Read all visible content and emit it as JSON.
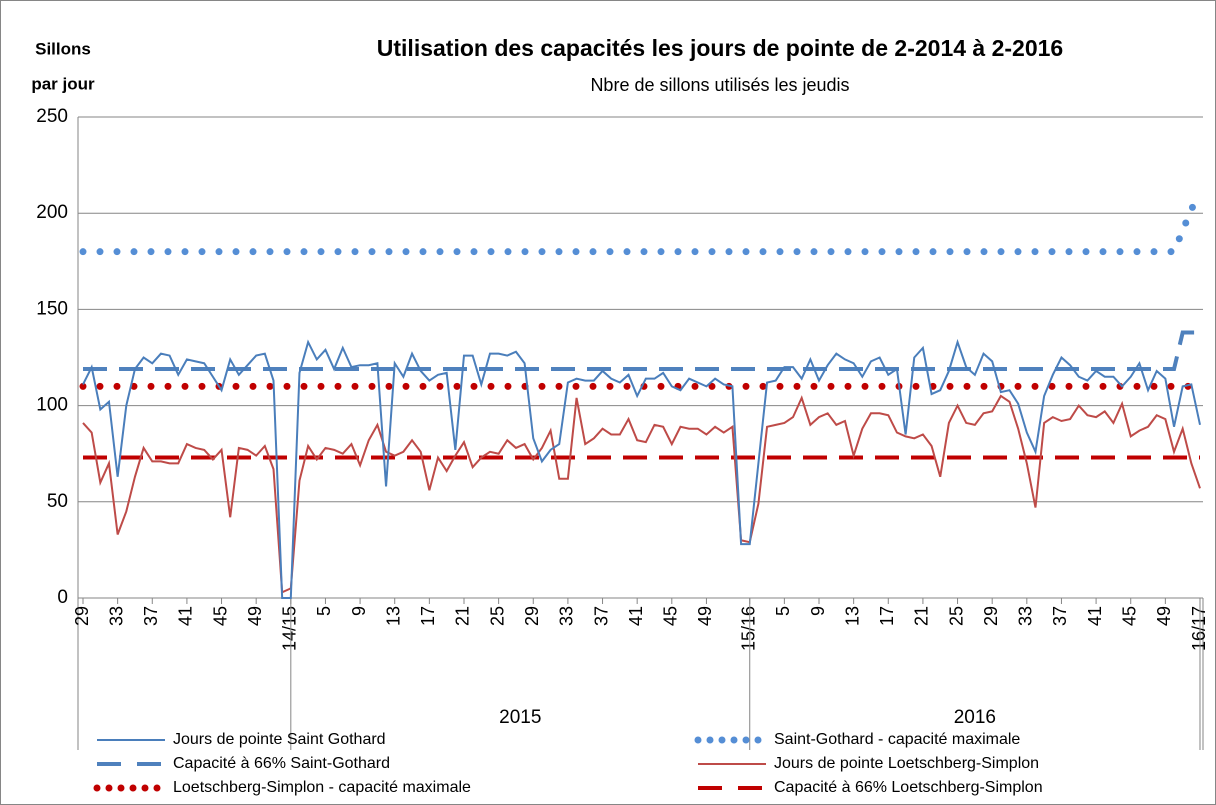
{
  "chart_data": {
    "type": "line",
    "title": "Utilisation des capacités les jours de pointe de 2-2014 à 2-2016",
    "subtitle": "Nbre de sillons utilisés les jeudis",
    "y_label": [
      "Sillons",
      "par jour"
    ],
    "ylim": [
      0,
      250
    ],
    "yticks": [
      0,
      50,
      100,
      150,
      200,
      250
    ],
    "grid": true,
    "legend": "bottom",
    "groups": [
      "2015",
      "2016"
    ],
    "categories": [
      "29",
      null,
      null,
      null,
      "33",
      null,
      null,
      null,
      "37",
      null,
      null,
      null,
      "41",
      null,
      null,
      null,
      "45",
      null,
      null,
      null,
      "49",
      null,
      null,
      null,
      "14/15",
      null,
      null,
      null,
      "5",
      null,
      null,
      null,
      "9",
      null,
      null,
      null,
      "13",
      null,
      null,
      null,
      "17",
      null,
      null,
      null,
      "21",
      null,
      null,
      null,
      "25",
      null,
      null,
      null,
      "29",
      null,
      null,
      null,
      "33",
      null,
      null,
      null,
      "37",
      null,
      null,
      null,
      "41",
      null,
      null,
      null,
      "45",
      null,
      null,
      null,
      "49",
      null,
      null,
      null,
      null,
      "15/16",
      null,
      null,
      null,
      "5",
      null,
      null,
      null,
      "9",
      null,
      null,
      null,
      "13",
      null,
      null,
      null,
      "17",
      null,
      null,
      null,
      "21",
      null,
      null,
      null,
      "25",
      null,
      null,
      null,
      "29",
      null,
      null,
      null,
      "33",
      null,
      null,
      null,
      "37",
      null,
      null,
      null,
      "41",
      null,
      null,
      null,
      "45",
      null,
      null,
      null,
      "49",
      null,
      null,
      null,
      "16/17"
    ],
    "series": [
      {
        "name": "Jours de pointe Saint Gothard",
        "color": "#4a7ebb",
        "style": "solid",
        "values": [
          111,
          120,
          98,
          102,
          63,
          100,
          119,
          125,
          122,
          127,
          126,
          116,
          124,
          123,
          122,
          115,
          108,
          124,
          116,
          121,
          126,
          127,
          113,
          0,
          0,
          117,
          133,
          124,
          129,
          119,
          130,
          120,
          121,
          121,
          122,
          58,
          122,
          115,
          127,
          118,
          113,
          116,
          117,
          77,
          126,
          126,
          111,
          127,
          127,
          126,
          128,
          122,
          83,
          71,
          77,
          80,
          112,
          114,
          113,
          113,
          118,
          114,
          112,
          116,
          105,
          114,
          114,
          117,
          110,
          108,
          114,
          112,
          110,
          114,
          111,
          110,
          28,
          28,
          70,
          112,
          113,
          120,
          120,
          114,
          124,
          113,
          121,
          127,
          124,
          122,
          115,
          123,
          125,
          116,
          119,
          85,
          125,
          130,
          106,
          108,
          118,
          133,
          120,
          116,
          127,
          123,
          107,
          108,
          101,
          86,
          76,
          105,
          116,
          125,
          121,
          115,
          113,
          118,
          115,
          115,
          110,
          115,
          122,
          108,
          118,
          114,
          89,
          110,
          111,
          90
        ]
      },
      {
        "name": "Saint-Gothard - capacité maximale",
        "color": "#558ed5",
        "style": "dot",
        "values": [
          180,
          180,
          180,
          180,
          180,
          180,
          180,
          180,
          180,
          180,
          180,
          180,
          180,
          180,
          180,
          180,
          180,
          180,
          180,
          180,
          180,
          180,
          180,
          180,
          180,
          180,
          180,
          180,
          180,
          180,
          180,
          180,
          180,
          180,
          180,
          180,
          180,
          180,
          180,
          180,
          180,
          180,
          180,
          180,
          180,
          180,
          180,
          180,
          180,
          180,
          180,
          180,
          180,
          180,
          180,
          180,
          180,
          180,
          180,
          180,
          180,
          180,
          180,
          180,
          180,
          180,
          180,
          180,
          180,
          180,
          180,
          180,
          180,
          180,
          180,
          180,
          180,
          180,
          180,
          180,
          180,
          180,
          180,
          180,
          180,
          180,
          180,
          180,
          180,
          180,
          180,
          180,
          180,
          180,
          180,
          180,
          180,
          180,
          180,
          180,
          180,
          180,
          180,
          180,
          180,
          180,
          180,
          180,
          180,
          180,
          180,
          180,
          180,
          180,
          180,
          180,
          180,
          180,
          180,
          180,
          180,
          180,
          180,
          180,
          180,
          180,
          180,
          191,
          202,
          210
        ]
      },
      {
        "name": "Capacité à 66% Saint-Gothard",
        "color": "#4f81bd",
        "style": "dash",
        "values": [
          119,
          119,
          119,
          119,
          119,
          119,
          119,
          119,
          119,
          119,
          119,
          119,
          119,
          119,
          119,
          119,
          119,
          119,
          119,
          119,
          119,
          119,
          119,
          119,
          119,
          119,
          119,
          119,
          119,
          119,
          119,
          119,
          119,
          119,
          119,
          119,
          119,
          119,
          119,
          119,
          119,
          119,
          119,
          119,
          119,
          119,
          119,
          119,
          119,
          119,
          119,
          119,
          119,
          119,
          119,
          119,
          119,
          119,
          119,
          119,
          119,
          119,
          119,
          119,
          119,
          119,
          119,
          119,
          119,
          119,
          119,
          119,
          119,
          119,
          119,
          119,
          119,
          119,
          119,
          119,
          119,
          119,
          119,
          119,
          119,
          119,
          119,
          119,
          119,
          119,
          119,
          119,
          119,
          119,
          119,
          119,
          119,
          119,
          119,
          119,
          119,
          119,
          119,
          119,
          119,
          119,
          119,
          119,
          119,
          119,
          119,
          119,
          119,
          119,
          119,
          119,
          119,
          119,
          119,
          119,
          119,
          119,
          119,
          119,
          119,
          119,
          119,
          138,
          138,
          138
        ]
      },
      {
        "name": "Jours de pointe Loetschberg-Simplon",
        "color": "#be4b48",
        "style": "solid",
        "values": [
          91,
          86,
          60,
          70,
          33,
          45,
          63,
          78,
          71,
          71,
          70,
          70,
          80,
          78,
          77,
          72,
          77,
          42,
          78,
          77,
          74,
          79,
          67,
          3,
          5,
          61,
          79,
          72,
          78,
          77,
          75,
          80,
          69,
          82,
          90,
          76,
          74,
          76,
          82,
          76,
          56,
          73,
          66,
          74,
          81,
          68,
          73,
          76,
          75,
          82,
          78,
          80,
          72,
          78,
          87,
          62,
          62,
          104,
          80,
          83,
          88,
          85,
          85,
          93,
          82,
          81,
          90,
          89,
          80,
          89,
          88,
          88,
          85,
          89,
          86,
          89,
          30,
          29,
          49,
          89,
          90,
          91,
          94,
          104,
          90,
          94,
          96,
          90,
          92,
          74,
          88,
          96,
          96,
          95,
          86,
          84,
          83,
          85,
          79,
          63,
          91,
          100,
          91,
          90,
          96,
          97,
          105,
          102,
          88,
          70,
          47,
          91,
          94,
          92,
          93,
          100,
          95,
          94,
          97,
          91,
          101,
          84,
          87,
          89,
          95,
          93,
          76,
          88,
          70,
          57
        ]
      },
      {
        "name": "Loetschberg-Simplon - capacité maximale",
        "color": "#c00000",
        "style": "dot",
        "values": [
          110,
          110,
          110,
          110,
          110,
          110,
          110,
          110,
          110,
          110,
          110,
          110,
          110,
          110,
          110,
          110,
          110,
          110,
          110,
          110,
          110,
          110,
          110,
          110,
          110,
          110,
          110,
          110,
          110,
          110,
          110,
          110,
          110,
          110,
          110,
          110,
          110,
          110,
          110,
          110,
          110,
          110,
          110,
          110,
          110,
          110,
          110,
          110,
          110,
          110,
          110,
          110,
          110,
          110,
          110,
          110,
          110,
          110,
          110,
          110,
          110,
          110,
          110,
          110,
          110,
          110,
          110,
          110,
          110,
          110,
          110,
          110,
          110,
          110,
          110,
          110,
          110,
          110,
          110,
          110,
          110,
          110,
          110,
          110,
          110,
          110,
          110,
          110,
          110,
          110,
          110,
          110,
          110,
          110,
          110,
          110,
          110,
          110,
          110,
          110,
          110,
          110,
          110,
          110,
          110,
          110,
          110,
          110,
          110,
          110,
          110,
          110,
          110,
          110,
          110,
          110,
          110,
          110,
          110,
          110,
          110,
          110,
          110,
          110,
          110,
          110,
          110,
          110,
          110,
          110
        ]
      },
      {
        "name": "Capacité à 66% Loetschberg-Simplon",
        "color": "#c00000",
        "style": "dash",
        "values": [
          73,
          73,
          73,
          73,
          73,
          73,
          73,
          73,
          73,
          73,
          73,
          73,
          73,
          73,
          73,
          73,
          73,
          73,
          73,
          73,
          73,
          73,
          73,
          73,
          73,
          73,
          73,
          73,
          73,
          73,
          73,
          73,
          73,
          73,
          73,
          73,
          73,
          73,
          73,
          73,
          73,
          73,
          73,
          73,
          73,
          73,
          73,
          73,
          73,
          73,
          73,
          73,
          73,
          73,
          73,
          73,
          73,
          73,
          73,
          73,
          73,
          73,
          73,
          73,
          73,
          73,
          73,
          73,
          73,
          73,
          73,
          73,
          73,
          73,
          73,
          73,
          73,
          73,
          73,
          73,
          73,
          73,
          73,
          73,
          73,
          73,
          73,
          73,
          73,
          73,
          73,
          73,
          73,
          73,
          73,
          73,
          73,
          73,
          73,
          73,
          73,
          73,
          73,
          73,
          73,
          73,
          73,
          73,
          73,
          73,
          73,
          73,
          73,
          73,
          73,
          73,
          73,
          73,
          73,
          73,
          73,
          73,
          73,
          73,
          73,
          73,
          73,
          73,
          73,
          73
        ]
      }
    ]
  }
}
